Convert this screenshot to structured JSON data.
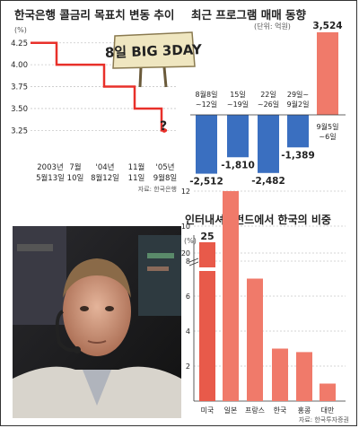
{
  "colors": {
    "red": "#e8302a",
    "blue": "#3a6fc0",
    "pink": "#f07a6a",
    "pinkDark": "#e85a4a",
    "grid": "#c8c8c8",
    "text": "#222",
    "sub": "#555"
  },
  "chart_data": [
    {
      "type": "line",
      "title": "한국은행 콜금리 목표치 변동 추이",
      "unit": "(%)",
      "sign": "8일 BIG 3DAY",
      "question_mark": "?",
      "source": "자료: 한국은행",
      "ylim": [
        3.1,
        4.35
      ],
      "yticks": [
        "4.25",
        "4.00",
        "3.75",
        "3.50",
        "3.25"
      ],
      "ytick_values": [
        4.25,
        4.0,
        3.75,
        3.5,
        3.25
      ],
      "x_labels": [
        {
          "line1": "2003년",
          "line2": "5월13일"
        },
        {
          "line1": "7월",
          "line2": "10일"
        },
        {
          "line1": "'04년",
          "line2": "8월12일"
        },
        {
          "line1": "11월",
          "line2": "11일"
        },
        {
          "line1": "'05년",
          "line2": "9월8일"
        }
      ],
      "steps": [
        4.25,
        4.0,
        3.75,
        3.5,
        3.25
      ]
    },
    {
      "type": "bar",
      "title": "최근 프로그램 매매 동향",
      "unit": "(단위: 억원)",
      "categories": [
        {
          "line1": "8월8일",
          "line2": "~12일"
        },
        {
          "line1": "15일",
          "line2": "~19일"
        },
        {
          "line1": "22일",
          "line2": "~26일"
        },
        {
          "line1": "29일~",
          "line2": "9월2일"
        },
        {
          "line1": "9월5일",
          "line2": "~6일"
        }
      ],
      "values": [
        -2512,
        -1810,
        -2482,
        -1389,
        3524
      ],
      "value_labels": [
        "-2,512",
        "-1,810",
        "-2,482",
        "-1,389",
        "3,524"
      ]
    },
    {
      "type": "bar",
      "title": "인터내셔널펀드에서 한국의 비중",
      "unit": "(%)",
      "categories": [
        "미국",
        "일본",
        "프랑스",
        "한국",
        "홍콩",
        "대만"
      ],
      "values": [
        25,
        12,
        7,
        3,
        2.8,
        1
      ],
      "value_labels": [
        "25",
        "",
        "",
        "",
        "",
        ""
      ],
      "yticks": [
        "2",
        "4",
        "6",
        "8",
        "10",
        "12",
        "20"
      ],
      "source": "자료: 한국투자증권",
      "ylim": [
        0,
        22
      ]
    }
  ]
}
